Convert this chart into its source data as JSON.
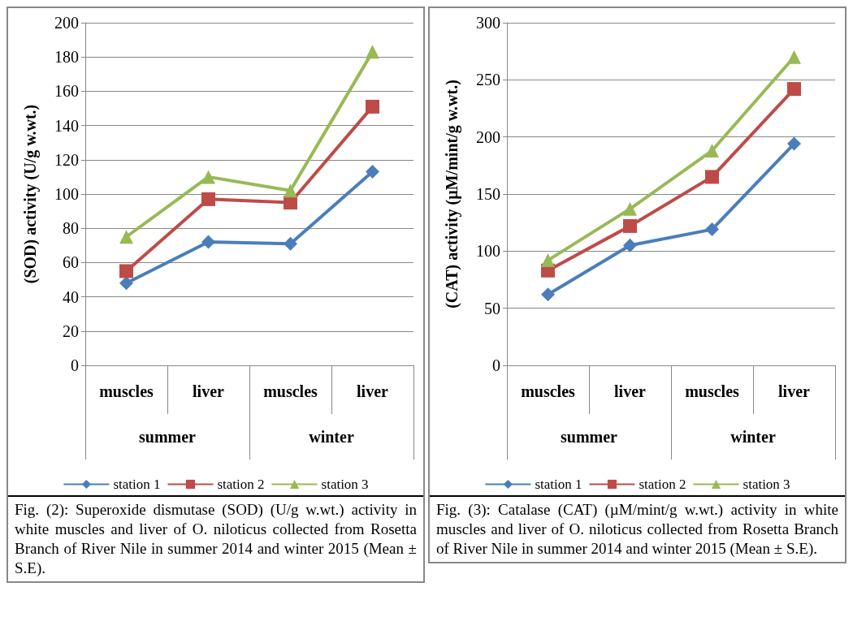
{
  "chart_data": [
    {
      "type": "line",
      "ylabel": "(SOD) activity (U/g w.wt.)",
      "categories": [
        "muscles",
        "liver",
        "muscles",
        "liver"
      ],
      "ylim": [
        0,
        200
      ],
      "yticks": [
        0,
        20,
        40,
        60,
        80,
        100,
        120,
        140,
        160,
        180,
        200
      ],
      "grid": "y",
      "legend": "bottom",
      "series": [
        {
          "name": "station 1",
          "color": "#4a7ebb",
          "marker": "diamond",
          "values": [
            48,
            72,
            71,
            113
          ]
        },
        {
          "name": "station 2",
          "color": "#be4b48",
          "marker": "square",
          "values": [
            55,
            97,
            95,
            151
          ]
        },
        {
          "name": "station 3",
          "color": "#98b954",
          "marker": "triangle",
          "values": [
            75,
            110,
            102,
            183
          ]
        }
      ],
      "annotations": [
        "summer",
        "winter",
        "Fig. (2): Superoxide dismutase (SOD) (U/g w.wt.) activity in white muscles and liver of O. niloticus collected from Rosetta Branch of River Nile in summer 2014 and winter 2015 (Mean ± S.E)."
      ]
    },
    {
      "type": "line",
      "ylabel": "(CAT) activity (µM/mint/g w.wt.)",
      "categories": [
        "muscles",
        "liver",
        "muscles",
        "liver"
      ],
      "ylim": [
        0,
        300
      ],
      "yticks": [
        0,
        50,
        100,
        150,
        200,
        250,
        300
      ],
      "grid": "y",
      "legend": "bottom",
      "series": [
        {
          "name": "station 1",
          "color": "#4a7ebb",
          "marker": "diamond",
          "values": [
            62,
            105,
            119,
            194
          ]
        },
        {
          "name": "station 2",
          "color": "#be4b48",
          "marker": "square",
          "values": [
            83,
            122,
            165,
            242
          ]
        },
        {
          "name": "station 3",
          "color": "#98b954",
          "marker": "triangle",
          "values": [
            92,
            137,
            188,
            270
          ]
        }
      ],
      "annotations": [
        "summer",
        "winter",
        "Fig. (3): Catalase (CAT) (µM/mint/g w.wt.) activity in white muscles and liver of O. niloticus collected from Rosetta Branch of River Nile in summer 2014 and winter 2015 (Mean ± S.E)."
      ]
    }
  ]
}
